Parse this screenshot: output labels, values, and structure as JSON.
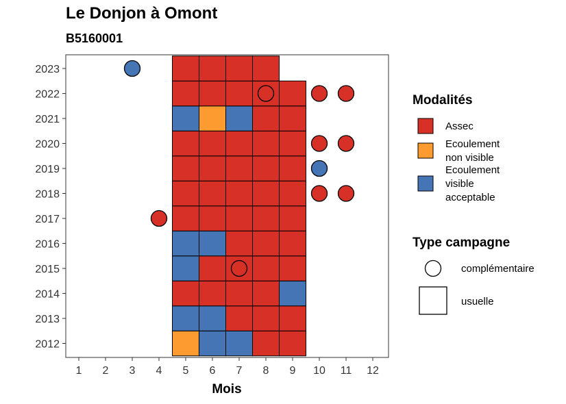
{
  "title": "Le Donjon à Omont",
  "subtitle": "B5160001",
  "chart_data": {
    "type": "heatmap",
    "xlabel": "Mois",
    "ylabel": "",
    "x_ticks": [
      "1",
      "2",
      "3",
      "4",
      "5",
      "6",
      "7",
      "8",
      "9",
      "10",
      "11",
      "12"
    ],
    "y_ticks": [
      "2012",
      "2013",
      "2014",
      "2015",
      "2016",
      "2017",
      "2018",
      "2019",
      "2020",
      "2021",
      "2022",
      "2023"
    ],
    "colors": {
      "Assec": "#d73027",
      "Ecoulement non visible": "#fd9a30",
      "Ecoulement visible acceptable": "#4575b4"
    },
    "usuelle": [
      {
        "year": 2012,
        "months": [
          "Ecoulement non visible",
          "Ecoulement visible acceptable",
          "Ecoulement visible acceptable",
          "Assec",
          "Assec"
        ]
      },
      {
        "year": 2013,
        "months": [
          "Ecoulement visible acceptable",
          "Ecoulement visible acceptable",
          "Assec",
          "Assec",
          "Assec"
        ]
      },
      {
        "year": 2014,
        "months": [
          "Assec",
          "Assec",
          "Assec",
          "Assec",
          "Ecoulement visible acceptable"
        ]
      },
      {
        "year": 2015,
        "months": [
          "Ecoulement visible acceptable",
          "Assec",
          "Assec",
          "Assec",
          "Assec"
        ]
      },
      {
        "year": 2016,
        "months": [
          "Ecoulement visible acceptable",
          "Ecoulement visible acceptable",
          "Assec",
          "Assec",
          "Assec"
        ]
      },
      {
        "year": 2017,
        "months": [
          "Assec",
          "Assec",
          "Assec",
          "Assec",
          "Assec"
        ]
      },
      {
        "year": 2018,
        "months": [
          "Assec",
          "Assec",
          "Assec",
          "Assec",
          "Assec"
        ]
      },
      {
        "year": 2019,
        "months": [
          "Assec",
          "Assec",
          "Assec",
          "Assec",
          "Assec"
        ]
      },
      {
        "year": 2020,
        "months": [
          "Assec",
          "Assec",
          "Assec",
          "Assec",
          "Assec"
        ]
      },
      {
        "year": 2021,
        "months": [
          "Ecoulement visible acceptable",
          "Ecoulement non visible",
          "Ecoulement visible acceptable",
          "Assec",
          "Assec"
        ]
      },
      {
        "year": 2022,
        "months": [
          "Assec",
          "Assec",
          "Assec",
          "Assec",
          "Assec"
        ]
      },
      {
        "year": 2023,
        "months": [
          "Assec",
          "Assec",
          "Assec",
          "Assec",
          null
        ]
      }
    ],
    "usuelle_start_month": 5,
    "complementaire": [
      {
        "year": 2023,
        "month": 3,
        "modalite": "Ecoulement visible acceptable"
      },
      {
        "year": 2022,
        "month": 8,
        "modalite": "Assec"
      },
      {
        "year": 2022,
        "month": 10,
        "modalite": "Assec"
      },
      {
        "year": 2022,
        "month": 11,
        "modalite": "Assec"
      },
      {
        "year": 2020,
        "month": 10,
        "modalite": "Assec"
      },
      {
        "year": 2020,
        "month": 11,
        "modalite": "Assec"
      },
      {
        "year": 2019,
        "month": 10,
        "modalite": "Ecoulement visible acceptable"
      },
      {
        "year": 2018,
        "month": 10,
        "modalite": "Assec"
      },
      {
        "year": 2018,
        "month": 11,
        "modalite": "Assec"
      },
      {
        "year": 2017,
        "month": 4,
        "modalite": "Assec"
      },
      {
        "year": 2015,
        "month": 7,
        "modalite": "Assec"
      }
    ],
    "legend_placement": "right",
    "grid": false
  },
  "legend": {
    "modalites_title": "Modalités",
    "modalites": [
      {
        "label_lines": [
          "Assec"
        ],
        "color": "#d73027"
      },
      {
        "label_lines": [
          "Ecoulement",
          "non visible"
        ],
        "color": "#fd9a30"
      },
      {
        "label_lines": [
          "Ecoulement",
          "visible",
          "acceptable"
        ],
        "color": "#4575b4"
      }
    ],
    "type_title": "Type campagne",
    "types": [
      {
        "label": "complémentaire",
        "shape": "circle"
      },
      {
        "label": "usuelle",
        "shape": "square"
      }
    ]
  }
}
